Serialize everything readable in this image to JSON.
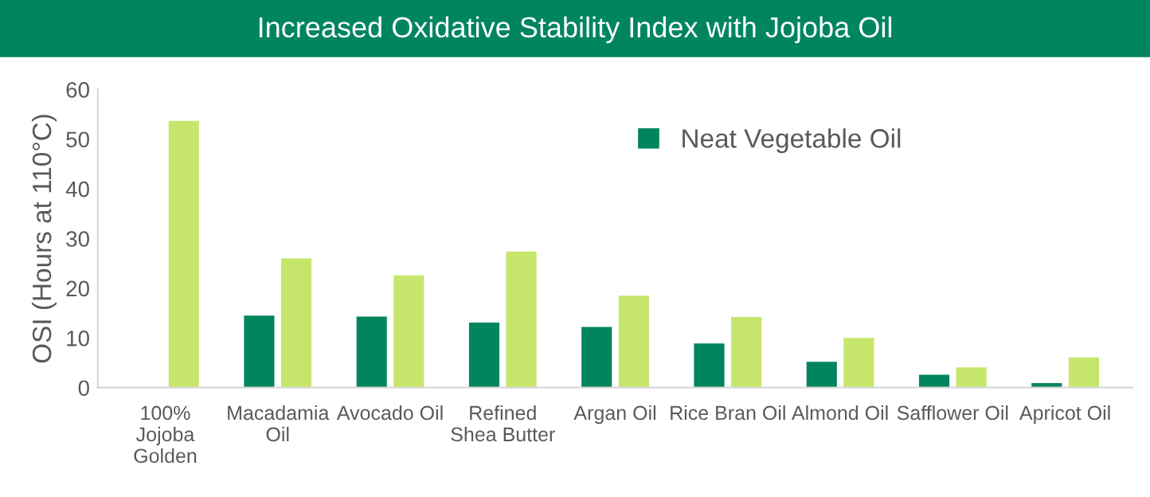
{
  "chart_data": {
    "type": "bar",
    "title": "Increased Oxidative Stability Index with Jojoba Oil",
    "ylabel": "OSI (Hours at 110°C)",
    "categories": [
      "100%\nJojoba\nGolden",
      "Macadamia\nOil",
      "Avocado Oil",
      "Refined\nShea Butter",
      "Argan Oil",
      "Rice Bran Oil",
      "Almond Oil",
      "Safflower Oil",
      "Apricot Oil"
    ],
    "series": [
      {
        "name": "Neat Vegetable Oil",
        "color": "#00855f",
        "values": [
          null,
          14.5,
          14.3,
          13.1,
          12.2,
          8.9,
          5.2,
          2.6,
          0.9
        ]
      },
      {
        "color": "#c5e66b",
        "values": [
          53.7,
          26.0,
          22.6,
          27.4,
          18.5,
          14.2,
          10.0,
          4.1,
          6.1
        ]
      }
    ],
    "ylim": [
      0,
      60
    ],
    "yticks": [
      0,
      10,
      20,
      30,
      40,
      50,
      60
    ],
    "grid": false,
    "legend": "top right"
  }
}
